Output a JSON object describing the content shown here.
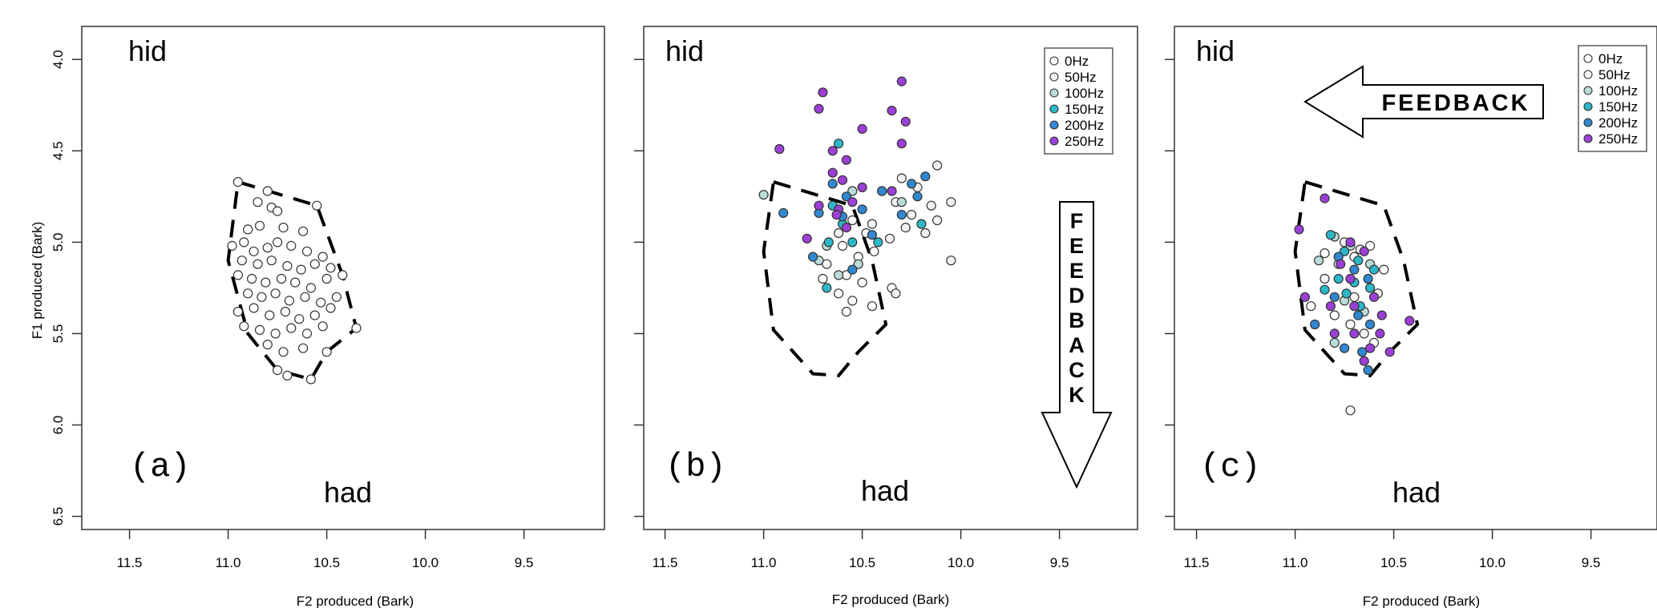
{
  "figure": {
    "ylabel": "F1 produced (Bark)",
    "xlabel": "F2 produced (Bark)",
    "vowel_top": "hid",
    "vowel_bottom": "had",
    "feedback_text": "FEEDBACK"
  },
  "legend": {
    "entries": [
      {
        "label": "0Hz",
        "color": "#ffffff"
      },
      {
        "label": "50Hz",
        "color": "#f2f2f2"
      },
      {
        "label": "100Hz",
        "color": "#b9dcd8"
      },
      {
        "label": "150Hz",
        "color": "#2bb8c9"
      },
      {
        "label": "200Hz",
        "color": "#3188d0"
      },
      {
        "label": "250Hz",
        "color": "#9b40d6"
      }
    ]
  },
  "chart_data": [
    {
      "type": "scatter",
      "panel_label": "(a)",
      "xlim": [
        11.6,
        9.1
      ],
      "ylim": [
        6.55,
        3.85
      ],
      "xticks": [
        11.5,
        11.0,
        10.5,
        10.0,
        9.5
      ],
      "yticks": [
        4.0,
        4.5,
        5.0,
        5.5,
        6.0,
        6.5
      ],
      "xlabel": "F2 produced (Bark)",
      "ylabel": "F1 produced (Bark)",
      "legend": false,
      "outline": [
        [
          10.95,
          4.67
        ],
        [
          10.55,
          4.8
        ],
        [
          10.42,
          5.18
        ],
        [
          10.35,
          5.47
        ],
        [
          10.5,
          5.6
        ],
        [
          10.58,
          5.75
        ],
        [
          10.75,
          5.7
        ],
        [
          10.9,
          5.5
        ],
        [
          11.0,
          5.1
        ],
        [
          10.95,
          4.67
        ]
      ],
      "series": [
        {
          "name": "0Hz",
          "points": [
            [
              10.95,
              4.67
            ],
            [
              10.8,
              4.72
            ],
            [
              10.85,
              4.78
            ],
            [
              10.78,
              4.81
            ],
            [
              10.75,
              4.83
            ],
            [
              10.55,
              4.8
            ],
            [
              10.9,
              4.93
            ],
            [
              10.84,
              4.91
            ],
            [
              10.72,
              4.92
            ],
            [
              10.62,
              4.94
            ],
            [
              10.98,
              5.02
            ],
            [
              10.92,
              5.0
            ],
            [
              10.87,
              5.05
            ],
            [
              10.8,
              5.03
            ],
            [
              10.75,
              5.0
            ],
            [
              10.68,
              5.02
            ],
            [
              10.6,
              5.05
            ],
            [
              10.52,
              5.08
            ],
            [
              10.93,
              5.1
            ],
            [
              10.85,
              5.12
            ],
            [
              10.78,
              5.1
            ],
            [
              10.7,
              5.13
            ],
            [
              10.63,
              5.15
            ],
            [
              10.56,
              5.12
            ],
            [
              10.48,
              5.14
            ],
            [
              10.95,
              5.18
            ],
            [
              10.88,
              5.2
            ],
            [
              10.81,
              5.22
            ],
            [
              10.73,
              5.2
            ],
            [
              10.66,
              5.22
            ],
            [
              10.58,
              5.25
            ],
            [
              10.5,
              5.2
            ],
            [
              10.42,
              5.18
            ],
            [
              10.9,
              5.28
            ],
            [
              10.83,
              5.3
            ],
            [
              10.76,
              5.28
            ],
            [
              10.69,
              5.32
            ],
            [
              10.61,
              5.3
            ],
            [
              10.53,
              5.33
            ],
            [
              10.45,
              5.3
            ],
            [
              10.95,
              5.38
            ],
            [
              10.87,
              5.36
            ],
            [
              10.79,
              5.4
            ],
            [
              10.71,
              5.38
            ],
            [
              10.64,
              5.42
            ],
            [
              10.56,
              5.4
            ],
            [
              10.48,
              5.36
            ],
            [
              10.92,
              5.46
            ],
            [
              10.84,
              5.48
            ],
            [
              10.76,
              5.5
            ],
            [
              10.68,
              5.47
            ],
            [
              10.6,
              5.5
            ],
            [
              10.52,
              5.46
            ],
            [
              10.35,
              5.47
            ],
            [
              10.8,
              5.56
            ],
            [
              10.72,
              5.6
            ],
            [
              10.62,
              5.58
            ],
            [
              10.5,
              5.6
            ],
            [
              10.75,
              5.7
            ],
            [
              10.58,
              5.75
            ],
            [
              10.7,
              5.73
            ]
          ]
        }
      ]
    },
    {
      "type": "scatter",
      "panel_label": "(b)",
      "xlim": [
        11.6,
        9.1
      ],
      "ylim": [
        6.55,
        3.85
      ],
      "xticks": [
        11.5,
        11.0,
        10.5,
        10.0,
        9.5
      ],
      "yticks": [
        4.0,
        4.5,
        5.0,
        5.5,
        6.0,
        6.5
      ],
      "xlabel": "F2 produced (Bark)",
      "ylabel": "F1 produced (Bark)",
      "legend": "top-right",
      "outline": [
        [
          10.95,
          4.67
        ],
        [
          10.55,
          4.8
        ],
        [
          10.45,
          5.1
        ],
        [
          10.38,
          5.45
        ],
        [
          10.52,
          5.6
        ],
        [
          10.62,
          5.73
        ],
        [
          10.75,
          5.72
        ],
        [
          10.95,
          5.48
        ],
        [
          11.0,
          5.05
        ],
        [
          10.95,
          4.67
        ]
      ],
      "series": [
        {
          "name": "0Hz",
          "points": [
            [
              10.55,
              4.88
            ],
            [
              10.48,
              4.95
            ],
            [
              10.6,
              5.02
            ],
            [
              10.52,
              5.08
            ],
            [
              10.44,
              5.05
            ],
            [
              10.68,
              5.12
            ],
            [
              10.58,
              5.18
            ],
            [
              10.5,
              5.22
            ],
            [
              10.62,
              5.28
            ],
            [
              10.55,
              5.32
            ],
            [
              10.45,
              5.35
            ],
            [
              10.35,
              5.25
            ],
            [
              10.58,
              5.38
            ],
            [
              10.7,
              5.2
            ]
          ]
        },
        {
          "name": "50Hz",
          "points": [
            [
              10.3,
              4.65
            ],
            [
              10.22,
              4.7
            ],
            [
              10.12,
              4.58
            ],
            [
              10.4,
              4.72
            ],
            [
              10.33,
              4.78
            ],
            [
              10.25,
              4.85
            ],
            [
              10.15,
              4.8
            ],
            [
              10.05,
              4.78
            ],
            [
              10.28,
              4.92
            ],
            [
              10.18,
              4.95
            ],
            [
              10.36,
              4.98
            ],
            [
              10.62,
              4.95
            ],
            [
              10.45,
              4.9
            ],
            [
              10.05,
              5.1
            ],
            [
              10.33,
              5.28
            ],
            [
              10.12,
              4.88
            ]
          ]
        },
        {
          "name": "100Hz",
          "points": [
            [
              10.68,
              5.02
            ],
            [
              10.72,
              5.1
            ],
            [
              10.62,
              5.18
            ],
            [
              10.52,
              5.12
            ],
            [
              11.0,
              4.74
            ],
            [
              10.3,
              4.78
            ],
            [
              10.55,
              4.72
            ]
          ]
        },
        {
          "name": "150Hz",
          "points": [
            [
              10.65,
              4.8
            ],
            [
              10.6,
              4.9
            ],
            [
              10.67,
              5.0
            ],
            [
              10.55,
              5.0
            ],
            [
              10.62,
              4.46
            ],
            [
              10.2,
              4.9
            ],
            [
              10.68,
              5.25
            ],
            [
              10.42,
              5.0
            ]
          ]
        },
        {
          "name": "200Hz",
          "points": [
            [
              10.65,
              4.68
            ],
            [
              10.58,
              4.75
            ],
            [
              10.5,
              4.82
            ],
            [
              10.72,
              4.84
            ],
            [
              10.6,
              4.86
            ],
            [
              10.25,
              4.68
            ],
            [
              10.18,
              4.64
            ],
            [
              10.3,
              4.85
            ],
            [
              10.4,
              4.72
            ],
            [
              10.75,
              5.08
            ],
            [
              10.9,
              4.84
            ],
            [
              10.55,
              5.15
            ],
            [
              10.45,
              4.96
            ],
            [
              10.22,
              4.75
            ]
          ]
        },
        {
          "name": "250Hz",
          "points": [
            [
              10.7,
              4.18
            ],
            [
              10.72,
              4.27
            ],
            [
              10.5,
              4.38
            ],
            [
              10.3,
              4.12
            ],
            [
              10.35,
              4.28
            ],
            [
              10.28,
              4.34
            ],
            [
              10.3,
              4.46
            ],
            [
              10.65,
              4.5
            ],
            [
              10.58,
              4.55
            ],
            [
              10.92,
              4.49
            ],
            [
              10.55,
              4.78
            ],
            [
              10.62,
              4.82
            ],
            [
              10.65,
              4.62
            ],
            [
              10.6,
              4.66
            ],
            [
              10.72,
              4.8
            ],
            [
              10.78,
              4.98
            ],
            [
              10.5,
              4.7
            ],
            [
              10.35,
              4.72
            ],
            [
              10.63,
              4.85
            ],
            [
              10.58,
              4.92
            ]
          ]
        }
      ]
    },
    {
      "type": "scatter",
      "panel_label": "(c)",
      "xlim": [
        11.6,
        9.1
      ],
      "ylim": [
        6.55,
        3.85
      ],
      "xticks": [
        11.5,
        11.0,
        10.5,
        10.0,
        9.5
      ],
      "yticks": [
        4.0,
        4.5,
        5.0,
        5.5,
        6.0,
        6.5
      ],
      "xlabel": "F2 produced (Bark)",
      "ylabel": "F1 produced (Bark)",
      "legend": "top-right",
      "outline": [
        [
          10.95,
          4.67
        ],
        [
          10.55,
          4.8
        ],
        [
          10.45,
          5.1
        ],
        [
          10.38,
          5.45
        ],
        [
          10.52,
          5.6
        ],
        [
          10.62,
          5.73
        ],
        [
          10.75,
          5.72
        ],
        [
          10.95,
          5.48
        ],
        [
          11.0,
          5.05
        ],
        [
          10.95,
          4.67
        ]
      ],
      "series": [
        {
          "name": "0Hz",
          "points": [
            [
              10.85,
              5.06
            ],
            [
              10.78,
              5.12
            ],
            [
              10.7,
              5.08
            ],
            [
              10.62,
              5.02
            ],
            [
              10.55,
              5.15
            ],
            [
              10.92,
              5.35
            ],
            [
              10.8,
              5.4
            ],
            [
              10.72,
              5.45
            ],
            [
              10.6,
              5.55
            ],
            [
              10.72,
              5.92
            ]
          ]
        },
        {
          "name": "50Hz",
          "points": [
            [
              10.75,
              5.0
            ],
            [
              10.67,
              5.04
            ],
            [
              10.85,
              5.2
            ],
            [
              10.7,
              5.3
            ],
            [
              10.58,
              5.28
            ],
            [
              10.65,
              5.5
            ]
          ]
        },
        {
          "name": "100Hz",
          "points": [
            [
              10.8,
              4.97
            ],
            [
              10.72,
              5.02
            ],
            [
              10.88,
              5.1
            ],
            [
              10.62,
              5.12
            ],
            [
              10.75,
              5.32
            ],
            [
              10.65,
              5.38
            ],
            [
              10.8,
              5.55
            ]
          ]
        },
        {
          "name": "150Hz",
          "points": [
            [
              10.82,
              4.96
            ],
            [
              10.75,
              5.05
            ],
            [
              10.68,
              5.1
            ],
            [
              10.78,
              5.2
            ],
            [
              10.7,
              5.22
            ],
            [
              10.6,
              5.15
            ],
            [
              10.62,
              5.25
            ],
            [
              10.74,
              5.28
            ],
            [
              10.67,
              5.35
            ],
            [
              10.85,
              5.26
            ]
          ]
        },
        {
          "name": "200Hz",
          "points": [
            [
              10.78,
              5.08
            ],
            [
              10.7,
              5.15
            ],
            [
              10.63,
              5.2
            ],
            [
              10.8,
              5.3
            ],
            [
              10.68,
              5.4
            ],
            [
              10.62,
              5.45
            ],
            [
              10.75,
              5.58
            ],
            [
              10.66,
              5.6
            ],
            [
              10.9,
              5.45
            ],
            [
              10.63,
              5.7
            ]
          ]
        },
        {
          "name": "250Hz",
          "points": [
            [
              10.85,
              4.76
            ],
            [
              10.98,
              4.93
            ],
            [
              10.72,
              5.0
            ],
            [
              10.65,
              5.05
            ],
            [
              10.77,
              5.12
            ],
            [
              10.72,
              5.2
            ],
            [
              10.6,
              5.3
            ],
            [
              10.82,
              5.35
            ],
            [
              10.7,
              5.35
            ],
            [
              10.57,
              5.5
            ],
            [
              10.62,
              5.58
            ],
            [
              10.52,
              5.6
            ],
            [
              10.42,
              5.43
            ],
            [
              10.8,
              5.5
            ],
            [
              10.95,
              5.3
            ],
            [
              10.7,
              5.5
            ],
            [
              10.65,
              5.65
            ],
            [
              10.56,
              5.4
            ]
          ]
        }
      ]
    }
  ]
}
